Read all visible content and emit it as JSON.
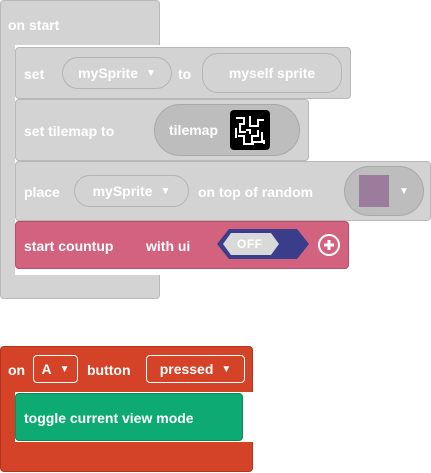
{
  "on_start": {
    "title": "on start",
    "set_block": {
      "set_label": "set",
      "variable": "mySprite",
      "to_label": "to",
      "value": "myself sprite"
    },
    "tilemap_block": {
      "label": "set tilemap to",
      "value": "tilemap"
    },
    "place_block": {
      "place_label": "place",
      "variable": "mySprite",
      "label": "on top of random",
      "color_swatch": "#9b7c9d"
    },
    "countup_block": {
      "label": "start countup",
      "ui_label": "with ui",
      "toggle": "OFF"
    }
  },
  "button_event": {
    "on_label": "on",
    "button_key": "A",
    "button_label": "button",
    "event": "pressed",
    "inner_block": "toggle current view mode"
  },
  "colors": {
    "disabled_grey": "#d3d3d3",
    "event_red": "#d44228",
    "action_green": "#0daa73",
    "countup_pink": "#d3627f",
    "toggle_purple": "#3a3d8a"
  }
}
